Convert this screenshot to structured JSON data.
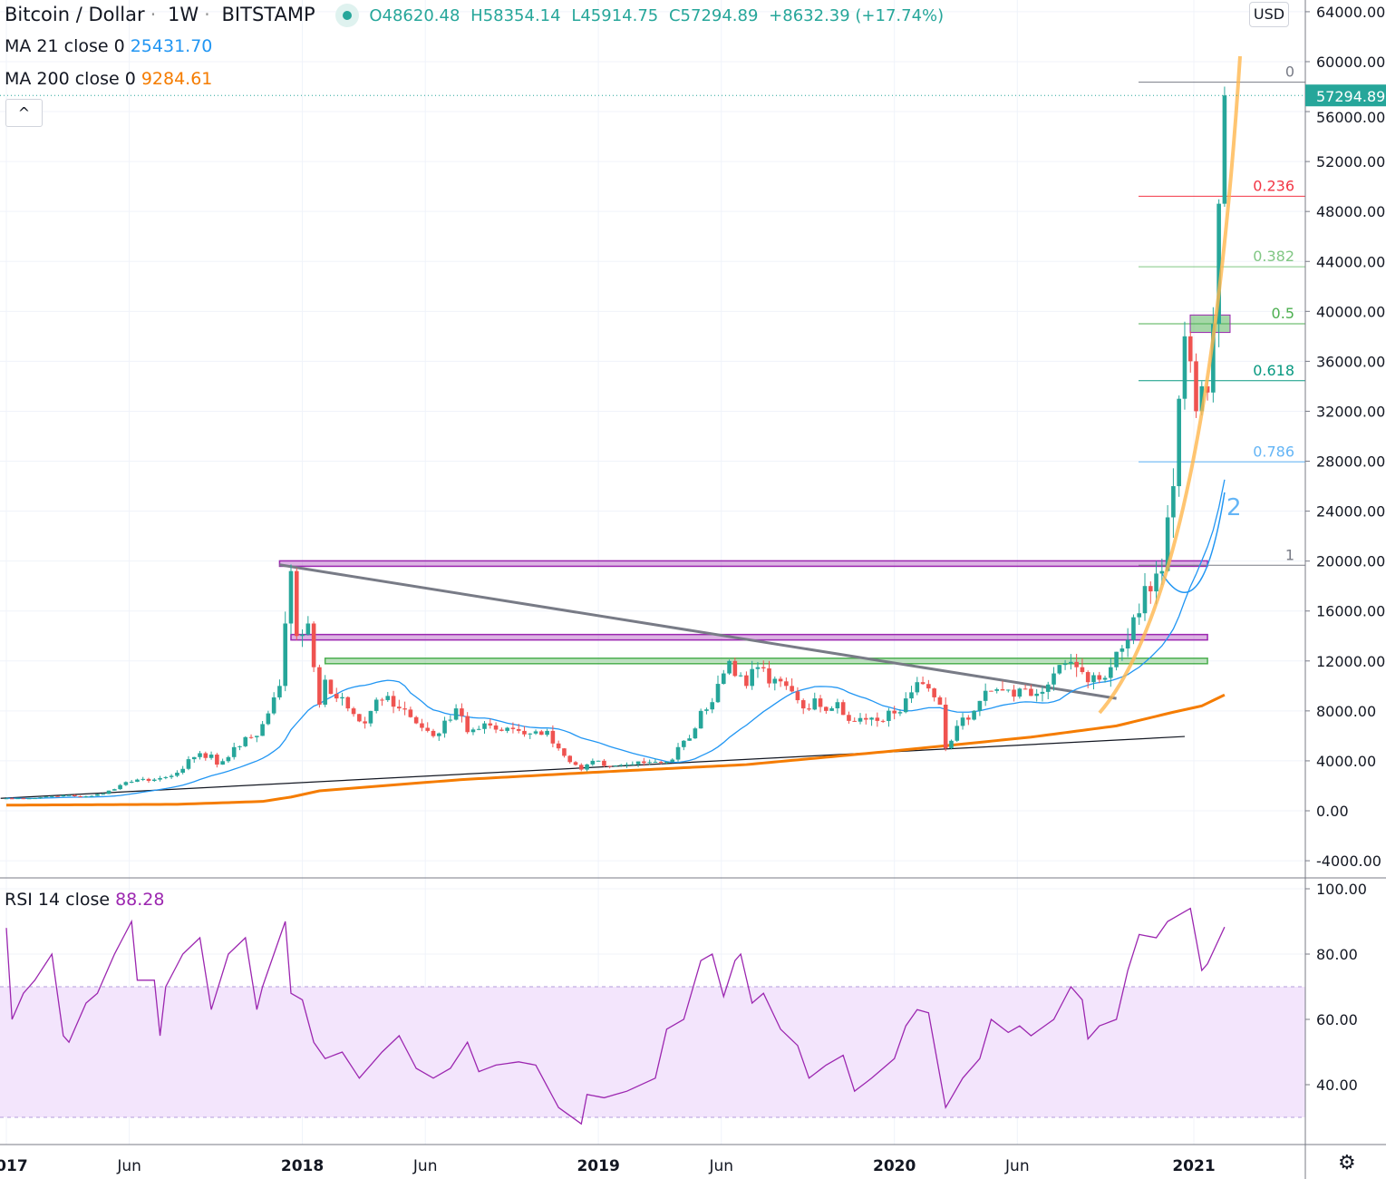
{
  "header": {
    "symbol": "Bitcoin / Dollar",
    "interval": "1W",
    "exchange": "BITSTAMP",
    "sep": "·",
    "open": "O48620.48",
    "high": "H58354.14",
    "low": "L45914.75",
    "close": "C57294.89",
    "change": "+8632.39 (+17.74%)"
  },
  "indicators": {
    "ma21_label": "MA 21 close 0",
    "ma21_value": "25431.70",
    "ma200_label": "MA 200 close 0",
    "ma200_value": "9284.61",
    "rsi_label": "RSI 14 close",
    "rsi_value": "88.28"
  },
  "controls": {
    "collapse": "^",
    "currency": "USD",
    "settings": "⚙"
  },
  "colors": {
    "up": "#26a69a",
    "down": "#ef5350",
    "ma21": "#2196f3",
    "ma200": "#f57c00",
    "rsi": "#9c27b0",
    "arc": "#ffb74d"
  },
  "chart_data": {
    "type": "candlestick",
    "title": "Bitcoin / Dollar · 1W · BITSTAMP",
    "ylim": [
      -5000,
      65000
    ],
    "y_ticks": [
      "64000.00",
      "60000.00",
      "56000.00",
      "52000.00",
      "48000.00",
      "44000.00",
      "40000.00",
      "36000.00",
      "32000.00",
      "28000.00",
      "24000.00",
      "20000.00",
      "16000.00",
      "12000.00",
      "8000.00",
      "4000.00",
      "0.00",
      "-4000.00"
    ],
    "y_tick_values": [
      64000,
      60000,
      56000,
      52000,
      48000,
      44000,
      40000,
      36000,
      32000,
      28000,
      24000,
      20000,
      16000,
      12000,
      8000,
      4000,
      0,
      -4000
    ],
    "last_price": "57294.89",
    "x_ticks": [
      {
        "label": "2017",
        "week": 0
      },
      {
        "label": "Jun",
        "week": 21.6
      },
      {
        "label": "2018",
        "week": 52
      },
      {
        "label": "Jun",
        "week": 73.6
      },
      {
        "label": "2019",
        "week": 104
      },
      {
        "label": "Jun",
        "week": 125.6
      },
      {
        "label": "2020",
        "week": 156
      },
      {
        "label": "Jun",
        "week": 177.6
      },
      {
        "label": "2021",
        "week": 208.6
      }
    ],
    "week_start": "2017-01-02",
    "closes_keypoints": [
      [
        0,
        1000
      ],
      [
        4,
        1000
      ],
      [
        8,
        1180
      ],
      [
        10,
        1250
      ],
      [
        13,
        1100
      ],
      [
        17,
        1350
      ],
      [
        21,
        2300
      ],
      [
        23,
        2500
      ],
      [
        26,
        2500
      ],
      [
        29,
        2800
      ],
      [
        33,
        4300
      ],
      [
        36,
        4500
      ],
      [
        37,
        3700
      ],
      [
        39,
        4300
      ],
      [
        42,
        5900
      ],
      [
        44,
        6000
      ],
      [
        46,
        7800
      ],
      [
        48,
        10000
      ],
      [
        49,
        15000
      ],
      [
        50,
        19200
      ],
      [
        51,
        14000
      ],
      [
        53,
        15000
      ],
      [
        54,
        11500
      ],
      [
        55,
        8500
      ],
      [
        56,
        10500
      ],
      [
        58,
        9000
      ],
      [
        60,
        8200
      ],
      [
        63,
        7000
      ],
      [
        65,
        8900
      ],
      [
        67,
        9200
      ],
      [
        69,
        8200
      ],
      [
        71,
        7500
      ],
      [
        74,
        6400
      ],
      [
        76,
        6200
      ],
      [
        79,
        8200
      ],
      [
        81,
        6300
      ],
      [
        84,
        7000
      ],
      [
        86,
        6500
      ],
      [
        90,
        6400
      ],
      [
        95,
        6400
      ],
      [
        97,
        5000
      ],
      [
        99,
        3900
      ],
      [
        101,
        3300
      ],
      [
        103,
        4000
      ],
      [
        105,
        3600
      ],
      [
        109,
        3700
      ],
      [
        113,
        3900
      ],
      [
        117,
        4100
      ],
      [
        118,
        5100
      ],
      [
        120,
        5800
      ],
      [
        122,
        8000
      ],
      [
        124,
        8700
      ],
      [
        126,
        11000
      ],
      [
        127,
        12000
      ],
      [
        128,
        10800
      ],
      [
        130,
        10000
      ],
      [
        132,
        11500
      ],
      [
        134,
        10200
      ],
      [
        137,
        10000
      ],
      [
        140,
        8200
      ],
      [
        142,
        9000
      ],
      [
        144,
        8000
      ],
      [
        146,
        8700
      ],
      [
        148,
        7200
      ],
      [
        151,
        7300
      ],
      [
        153,
        7200
      ],
      [
        156,
        7800
      ],
      [
        158,
        9000
      ],
      [
        160,
        10300
      ],
      [
        162,
        9800
      ],
      [
        164,
        8500
      ],
      [
        165,
        5000
      ],
      [
        167,
        6800
      ],
      [
        169,
        7300
      ],
      [
        171,
        8800
      ],
      [
        173,
        9600
      ],
      [
        176,
        9700
      ],
      [
        180,
        9200
      ],
      [
        184,
        11000
      ],
      [
        186,
        11800
      ],
      [
        188,
        11500
      ],
      [
        190,
        10300
      ],
      [
        192,
        10500
      ],
      [
        194,
        11500
      ],
      [
        196,
        13000
      ],
      [
        198,
        15500
      ],
      [
        200,
        18000
      ],
      [
        202,
        19000
      ],
      [
        203,
        19200
      ],
      [
        204,
        23500
      ],
      [
        205,
        26000
      ],
      [
        206,
        33000
      ],
      [
        207,
        38000
      ],
      [
        208,
        36000
      ],
      [
        209,
        32000
      ],
      [
        210,
        34000
      ],
      [
        211,
        33500
      ],
      [
        212,
        39000
      ],
      [
        213,
        48620
      ],
      [
        214,
        57294.89
      ]
    ],
    "ma200_keypoints": [
      [
        0,
        450
      ],
      [
        30,
        520
      ],
      [
        45,
        750
      ],
      [
        50,
        1100
      ],
      [
        55,
        1600
      ],
      [
        80,
        2500
      ],
      [
        104,
        3100
      ],
      [
        130,
        3700
      ],
      [
        156,
        4800
      ],
      [
        180,
        5900
      ],
      [
        195,
        6800
      ],
      [
        205,
        7900
      ],
      [
        210,
        8400
      ],
      [
        214,
        9284.61
      ]
    ],
    "fib": {
      "high": 58354.14,
      "low": 19666,
      "levels": [
        {
          "ratio": 0,
          "label": "0",
          "color": "#787b86"
        },
        {
          "ratio": 0.236,
          "label": "0.236",
          "color": "#f23645"
        },
        {
          "ratio": 0.382,
          "label": "0.382",
          "color": "#81c784"
        },
        {
          "ratio": 0.5,
          "label": "0.5",
          "color": "#4caf50"
        },
        {
          "ratio": 0.618,
          "label": "0.618",
          "color": "#089981"
        },
        {
          "ratio": 0.786,
          "label": "0.786",
          "color": "#64b5f6"
        },
        {
          "ratio": 1,
          "label": "1",
          "color": "#787b86"
        }
      ]
    },
    "zones": [
      {
        "price": 19800,
        "from_week": 48,
        "to_week": 211,
        "color": "#9c27b0"
      },
      {
        "price": 13900,
        "from_week": 50,
        "to_week": 211,
        "color": "#9c27b0"
      },
      {
        "price": 12000,
        "from_week": 56,
        "to_week": 211,
        "color": "#4caf50"
      }
    ],
    "trendlines": [
      {
        "from": [
          48,
          19700
        ],
        "to": [
          195,
          9000
        ],
        "color": "#787b86"
      },
      {
        "from": [
          -1,
          1000
        ],
        "to": [
          207,
          5950
        ],
        "color": "#131722"
      }
    ],
    "wave_label": "2",
    "rsi": {
      "ylim": [
        25,
        100
      ],
      "y_ticks": [
        "100.00",
        "80.00",
        "60.00",
        "40.00"
      ],
      "y_tick_values": [
        100,
        80,
        60,
        40
      ],
      "band": [
        30,
        70
      ],
      "keypoints": [
        [
          0,
          88
        ],
        [
          1,
          60
        ],
        [
          3,
          68
        ],
        [
          5,
          72
        ],
        [
          8,
          80
        ],
        [
          10,
          55
        ],
        [
          11,
          53
        ],
        [
          14,
          65
        ],
        [
          16,
          68
        ],
        [
          19,
          80
        ],
        [
          22,
          90
        ],
        [
          23,
          72
        ],
        [
          26,
          72
        ],
        [
          27,
          55
        ],
        [
          28,
          70
        ],
        [
          31,
          80
        ],
        [
          34,
          85
        ],
        [
          36,
          63
        ],
        [
          39,
          80
        ],
        [
          42,
          85
        ],
        [
          44,
          63
        ],
        [
          45,
          70
        ],
        [
          49,
          90
        ],
        [
          50,
          68
        ],
        [
          52,
          66
        ],
        [
          54,
          53
        ],
        [
          56,
          48
        ],
        [
          59,
          50
        ],
        [
          62,
          42
        ],
        [
          66,
          50
        ],
        [
          69,
          55
        ],
        [
          72,
          45
        ],
        [
          75,
          42
        ],
        [
          78,
          45
        ],
        [
          81,
          53
        ],
        [
          83,
          44
        ],
        [
          86,
          46
        ],
        [
          90,
          47
        ],
        [
          93,
          46
        ],
        [
          97,
          33
        ],
        [
          101,
          28
        ],
        [
          102,
          37
        ],
        [
          105,
          36
        ],
        [
          109,
          38
        ],
        [
          114,
          42
        ],
        [
          116,
          57
        ],
        [
          119,
          60
        ],
        [
          122,
          78
        ],
        [
          124,
          80
        ],
        [
          126,
          67
        ],
        [
          128,
          78
        ],
        [
          129,
          80
        ],
        [
          131,
          65
        ],
        [
          133,
          68
        ],
        [
          136,
          57
        ],
        [
          139,
          52
        ],
        [
          141,
          42
        ],
        [
          144,
          46
        ],
        [
          147,
          49
        ],
        [
          149,
          38
        ],
        [
          152,
          42
        ],
        [
          156,
          48
        ],
        [
          158,
          58
        ],
        [
          160,
          63
        ],
        [
          162,
          62
        ],
        [
          165,
          33
        ],
        [
          168,
          42
        ],
        [
          171,
          48
        ],
        [
          173,
          60
        ],
        [
          176,
          56
        ],
        [
          178,
          58
        ],
        [
          180,
          55
        ],
        [
          184,
          60
        ],
        [
          187,
          70
        ],
        [
          189,
          66
        ],
        [
          190,
          54
        ],
        [
          192,
          58
        ],
        [
          195,
          60
        ],
        [
          197,
          75
        ],
        [
          199,
          86
        ],
        [
          202,
          85
        ],
        [
          204,
          90
        ],
        [
          208,
          94
        ],
        [
          210,
          75
        ],
        [
          211,
          77
        ],
        [
          214,
          88.28
        ]
      ]
    }
  }
}
